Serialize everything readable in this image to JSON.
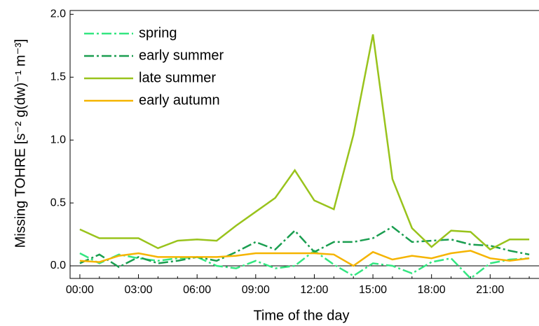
{
  "chart_data": {
    "type": "line",
    "xlabel": "Time of the day",
    "ylabel": "Missing TOHRE [s⁻² g(dw)⁻¹ m⁻³]",
    "categories": [
      "00:00",
      null,
      null,
      "03:00",
      null,
      null,
      "06:00",
      null,
      null,
      "09:00",
      null,
      null,
      "12:00",
      null,
      null,
      "15:00",
      null,
      null,
      "18:00",
      null,
      null,
      "21:00",
      null,
      null
    ],
    "series": [
      {
        "name": "spring",
        "color": "#33e680",
        "dash": "dashdot",
        "values": [
          0.1,
          0.02,
          0.09,
          0.06,
          0.04,
          0.06,
          0.07,
          0.0,
          -0.02,
          0.04,
          -0.02,
          0.0,
          0.12,
          0.01,
          -0.08,
          0.02,
          0.0,
          -0.06,
          0.03,
          0.06,
          -0.1,
          0.02,
          0.05,
          0.06
        ]
      },
      {
        "name": "early summer",
        "color": "#1a9e50",
        "dash": "dashdot",
        "values": [
          0.02,
          0.09,
          -0.01,
          0.07,
          0.02,
          0.04,
          0.07,
          0.04,
          0.11,
          0.19,
          0.13,
          0.28,
          0.11,
          0.19,
          0.19,
          0.22,
          0.31,
          0.19,
          0.2,
          0.21,
          0.17,
          0.16,
          0.12,
          0.09
        ]
      },
      {
        "name": "late summer",
        "color": "#99c31c",
        "dash": "solid",
        "values": [
          0.29,
          0.22,
          0.22,
          0.22,
          0.14,
          0.2,
          0.21,
          0.2,
          0.32,
          0.43,
          0.54,
          0.76,
          0.52,
          0.45,
          1.04,
          1.84,
          0.69,
          0.3,
          0.15,
          0.28,
          0.27,
          0.13,
          0.21,
          0.21
        ]
      },
      {
        "name": "early autumn",
        "color": "#f5b400",
        "dash": "solid",
        "values": [
          0.04,
          0.03,
          0.08,
          0.1,
          0.07,
          0.07,
          0.07,
          0.07,
          0.08,
          0.1,
          0.1,
          0.1,
          0.1,
          0.09,
          0.0,
          0.11,
          0.05,
          0.08,
          0.06,
          0.1,
          0.12,
          0.06,
          0.04,
          0.06
        ]
      }
    ],
    "ylim": [
      -0.1,
      2.03
    ],
    "yticks": [
      {
        "value": 0,
        "label": "0.0"
      },
      0.5,
      {
        "value": 1,
        "label": "1.0"
      },
      1.5,
      {
        "value": 2,
        "label": "2.0"
      }
    ],
    "legend": "upper left"
  }
}
